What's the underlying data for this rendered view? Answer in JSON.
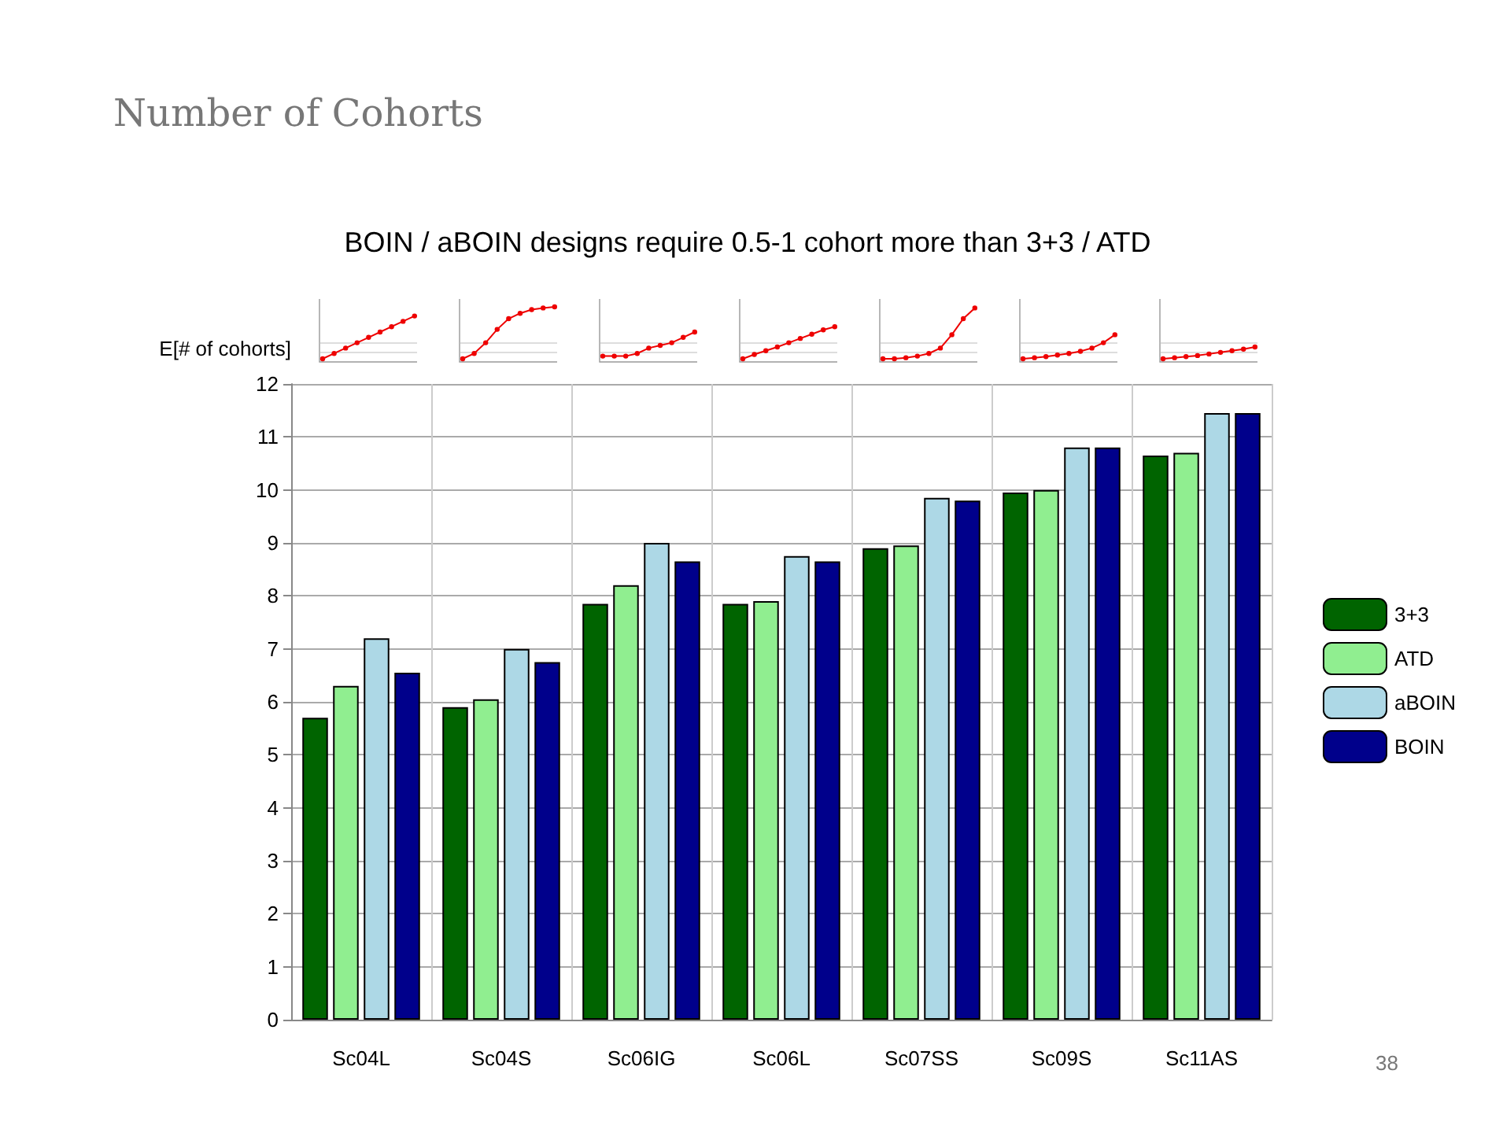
{
  "chart_data": {
    "type": "bar",
    "title": "Number of Cohorts",
    "subtitle": "BOIN / aBOIN designs require 0.5-1 cohort more than 3+3 / ATD",
    "ylabel": "E[# of cohorts]",
    "categories": [
      "Sc04L",
      "Sc04S",
      "Sc06IG",
      "Sc06L",
      "Sc07SS",
      "Sc09S",
      "Sc11AS"
    ],
    "series": [
      {
        "name": "3+3",
        "color": "#006400",
        "values": [
          5.7,
          5.9,
          7.85,
          7.85,
          8.9,
          9.95,
          10.65
        ]
      },
      {
        "name": "ATD",
        "color": "#90ee90",
        "values": [
          6.3,
          6.05,
          8.2,
          7.9,
          8.95,
          10.0,
          10.7
        ]
      },
      {
        "name": "aBOIN",
        "color": "#add8e6",
        "values": [
          7.2,
          7.0,
          9.0,
          8.75,
          9.85,
          10.8,
          11.45
        ]
      },
      {
        "name": "BOIN",
        "color": "#00008b",
        "values": [
          6.55,
          6.75,
          8.65,
          8.65,
          9.8,
          10.8,
          11.45
        ]
      }
    ],
    "ylim": [
      0,
      12
    ],
    "yticks": [
      0,
      1,
      2,
      3,
      4,
      5,
      6,
      7,
      8,
      9,
      10,
      11,
      12
    ],
    "grid": true,
    "legend": "right",
    "annotations": [
      "38"
    ]
  }
}
